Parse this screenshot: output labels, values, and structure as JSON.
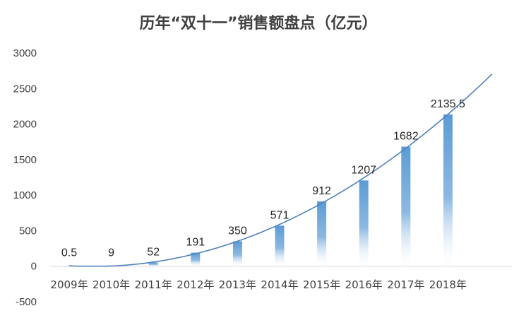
{
  "chart_data": {
    "type": "bar",
    "title": "历年“双十一”销售额盘点（亿元）",
    "categories": [
      "2009年",
      "2010年",
      "2011年",
      "2012年",
      "2013年",
      "2014年",
      "2015年",
      "2016年",
      "2017年",
      "2018年"
    ],
    "values": [
      0.5,
      9,
      52,
      191,
      350,
      571,
      912,
      1207,
      1682,
      2135.5
    ],
    "data_labels": [
      "0.5",
      "9",
      "52",
      "191",
      "350",
      "571",
      "912",
      "1207",
      "1682",
      "2135.5"
    ],
    "ylim": [
      -500,
      3000
    ],
    "yticks": [
      "-500",
      "0",
      "500",
      "1000",
      "1500",
      "2000",
      "2500",
      "3000"
    ],
    "trendline": "polynomial",
    "grid": false,
    "colors": {
      "bar": "#5b9bd5",
      "trend": "#4f81bd",
      "axis": "#d9d9d9"
    }
  }
}
